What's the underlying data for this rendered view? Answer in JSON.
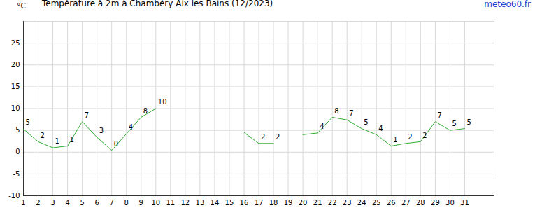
{
  "chart_data": {
    "type": "line",
    "title": "Température à 2m à Chambéry Aix les Bains (12/2023)",
    "source": "meteo60.fr",
    "y_label": "°C",
    "x": [
      1,
      2,
      3,
      4,
      5,
      6,
      7,
      8,
      9,
      10,
      11,
      12,
      13,
      14,
      15,
      16,
      17,
      18,
      19,
      20,
      21,
      22,
      23,
      24,
      25,
      26,
      27,
      28,
      29,
      30,
      31
    ],
    "values": [
      5.3,
      2.4,
      1,
      1.4,
      7,
      3.4,
      0.4,
      4.2,
      8,
      10,
      null,
      null,
      null,
      null,
      null,
      4.5,
      2,
      2,
      null,
      4,
      4.4,
      8,
      7.4,
      5.4,
      4,
      1.4,
      2,
      2.4,
      7,
      5,
      5.4
    ],
    "value_labels": [
      "5",
      "2",
      "1",
      "1",
      "7",
      "3",
      "0",
      "4",
      "8",
      "10",
      null,
      null,
      null,
      null,
      null,
      null,
      "2",
      "2",
      null,
      null,
      "4",
      "8",
      "7",
      "5",
      "4",
      "1",
      "2",
      "2",
      "7",
      "5",
      "5"
    ],
    "color": "#33aa33",
    "xlim": [
      1,
      33
    ],
    "xticks": [
      1,
      2,
      3,
      4,
      5,
      6,
      7,
      8,
      9,
      10,
      11,
      12,
      13,
      14,
      15,
      16,
      17,
      18,
      19,
      20,
      21,
      22,
      23,
      24,
      25,
      26,
      27,
      28,
      29,
      30,
      31
    ],
    "ylim": [
      -10,
      30
    ],
    "yticks": [
      -10,
      -5,
      0,
      5,
      10,
      15,
      20,
      25
    ],
    "grid": true,
    "data_labels": true
  }
}
